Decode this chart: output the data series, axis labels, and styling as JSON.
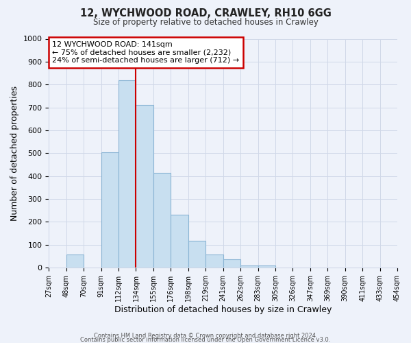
{
  "title": "12, WYCHWOOD ROAD, CRAWLEY, RH10 6GG",
  "subtitle": "Size of property relative to detached houses in Crawley",
  "xlabel": "Distribution of detached houses by size in Crawley",
  "ylabel": "Number of detached properties",
  "footer_line1": "Contains HM Land Registry data © Crown copyright and database right 2024.",
  "footer_line2": "Contains public sector information licensed under the Open Government Licence v3.0.",
  "bin_labels": [
    "27sqm",
    "48sqm",
    "70sqm",
    "91sqm",
    "112sqm",
    "134sqm",
    "155sqm",
    "176sqm",
    "198sqm",
    "219sqm",
    "241sqm",
    "262sqm",
    "283sqm",
    "305sqm",
    "326sqm",
    "347sqm",
    "369sqm",
    "390sqm",
    "411sqm",
    "433sqm",
    "454sqm"
  ],
  "bar_heights": [
    0,
    57,
    0,
    505,
    820,
    710,
    415,
    232,
    117,
    57,
    35,
    10,
    10,
    0,
    0,
    0,
    0,
    0,
    0,
    0
  ],
  "bar_color": "#c8dff0",
  "bar_edge_color": "#8ab4d4",
  "vline_x_index": 5,
  "vline_color": "#cc0000",
  "annotation_title": "12 WYCHWOOD ROAD: 141sqm",
  "annotation_line1": "← 75% of detached houses are smaller (2,232)",
  "annotation_line2": "24% of semi-detached houses are larger (712) →",
  "annotation_box_color": "#ffffff",
  "annotation_box_edge": "#cc0000",
  "ylim": [
    0,
    1000
  ],
  "n_bins": 20,
  "grid_color": "#d0d8e8",
  "background_color": "#eef2fa"
}
